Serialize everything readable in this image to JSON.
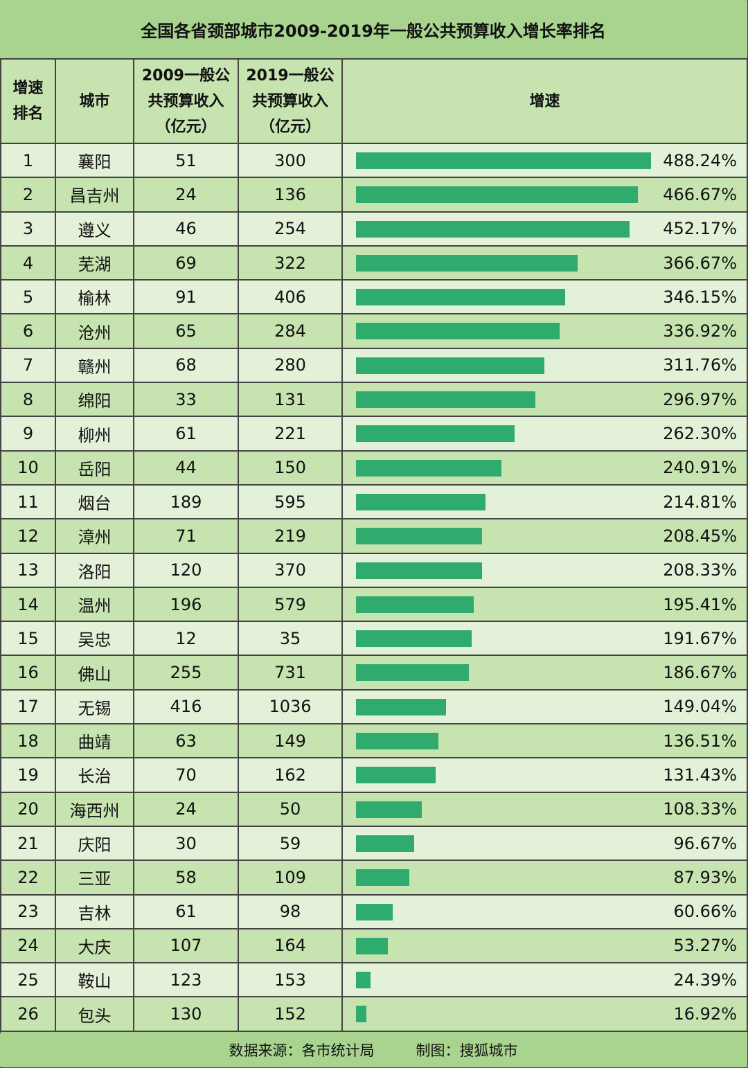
{
  "chart_data": {
    "type": "table",
    "title": "全国各省颈部城市2009-2019年一般公共预算收入增长率排名",
    "headers": {
      "rank": "增速排名",
      "city": "城市",
      "rev2009": "2009一般公共预算收入（亿元）",
      "rev2019": "2019一般公共预算收入（亿元）",
      "growth": "增速"
    },
    "rows": [
      {
        "rank": "1",
        "city": "襄阳",
        "rev2009": "51",
        "rev2019": "300",
        "growth": 488.24,
        "growth_label": "488.24%"
      },
      {
        "rank": "2",
        "city": "昌吉州",
        "rev2009": "24",
        "rev2019": "136",
        "growth": 466.67,
        "growth_label": "466.67%"
      },
      {
        "rank": "3",
        "city": "遵义",
        "rev2009": "46",
        "rev2019": "254",
        "growth": 452.17,
        "growth_label": "452.17%"
      },
      {
        "rank": "4",
        "city": "芜湖",
        "rev2009": "69",
        "rev2019": "322",
        "growth": 366.67,
        "growth_label": "366.67%"
      },
      {
        "rank": "5",
        "city": "榆林",
        "rev2009": "91",
        "rev2019": "406",
        "growth": 346.15,
        "growth_label": "346.15%"
      },
      {
        "rank": "6",
        "city": "沧州",
        "rev2009": "65",
        "rev2019": "284",
        "growth": 336.92,
        "growth_label": "336.92%"
      },
      {
        "rank": "7",
        "city": "赣州",
        "rev2009": "68",
        "rev2019": "280",
        "growth": 311.76,
        "growth_label": "311.76%"
      },
      {
        "rank": "8",
        "city": "绵阳",
        "rev2009": "33",
        "rev2019": "131",
        "growth": 296.97,
        "growth_label": "296.97%"
      },
      {
        "rank": "9",
        "city": "柳州",
        "rev2009": "61",
        "rev2019": "221",
        "growth": 262.3,
        "growth_label": "262.30%"
      },
      {
        "rank": "10",
        "city": "岳阳",
        "rev2009": "44",
        "rev2019": "150",
        "growth": 240.91,
        "growth_label": "240.91%"
      },
      {
        "rank": "11",
        "city": "烟台",
        "rev2009": "189",
        "rev2019": "595",
        "growth": 214.81,
        "growth_label": "214.81%"
      },
      {
        "rank": "12",
        "city": "漳州",
        "rev2009": "71",
        "rev2019": "219",
        "growth": 208.45,
        "growth_label": "208.45%"
      },
      {
        "rank": "13",
        "city": "洛阳",
        "rev2009": "120",
        "rev2019": "370",
        "growth": 208.33,
        "growth_label": "208.33%"
      },
      {
        "rank": "14",
        "city": "温州",
        "rev2009": "196",
        "rev2019": "579",
        "growth": 195.41,
        "growth_label": "195.41%"
      },
      {
        "rank": "15",
        "city": "吴忠",
        "rev2009": "12",
        "rev2019": "35",
        "growth": 191.67,
        "growth_label": "191.67%"
      },
      {
        "rank": "16",
        "city": "佛山",
        "rev2009": "255",
        "rev2019": "731",
        "growth": 186.67,
        "growth_label": "186.67%"
      },
      {
        "rank": "17",
        "city": "无锡",
        "rev2009": "416",
        "rev2019": "1036",
        "growth": 149.04,
        "growth_label": "149.04%"
      },
      {
        "rank": "18",
        "city": "曲靖",
        "rev2009": "63",
        "rev2019": "149",
        "growth": 136.51,
        "growth_label": "136.51%"
      },
      {
        "rank": "19",
        "city": "长治",
        "rev2009": "70",
        "rev2019": "162",
        "growth": 131.43,
        "growth_label": "131.43%"
      },
      {
        "rank": "20",
        "city": "海西州",
        "rev2009": "24",
        "rev2019": "50",
        "growth": 108.33,
        "growth_label": "108.33%"
      },
      {
        "rank": "21",
        "city": "庆阳",
        "rev2009": "30",
        "rev2019": "59",
        "growth": 96.67,
        "growth_label": "96.67%"
      },
      {
        "rank": "22",
        "city": "三亚",
        "rev2009": "58",
        "rev2019": "109",
        "growth": 87.93,
        "growth_label": "87.93%"
      },
      {
        "rank": "23",
        "city": "吉林",
        "rev2009": "61",
        "rev2019": "98",
        "growth": 60.66,
        "growth_label": "60.66%"
      },
      {
        "rank": "24",
        "city": "大庆",
        "rev2009": "107",
        "rev2019": "164",
        "growth": 53.27,
        "growth_label": "53.27%"
      },
      {
        "rank": "25",
        "city": "鞍山",
        "rev2009": "123",
        "rev2019": "153",
        "growth": 24.39,
        "growth_label": "24.39%"
      },
      {
        "rank": "26",
        "city": "包头",
        "rev2009": "130",
        "rev2019": "152",
        "growth": 16.92,
        "growth_label": "16.92%"
      }
    ],
    "bar_color": "#2fab6d"
  },
  "footer": {
    "source": "数据来源：各市统计局",
    "maker": "制图：搜狐城市"
  },
  "colors": {
    "header_bg": "#a8d48f",
    "row_light": "#e4f1d9",
    "row_dark": "#c6e3b0"
  }
}
